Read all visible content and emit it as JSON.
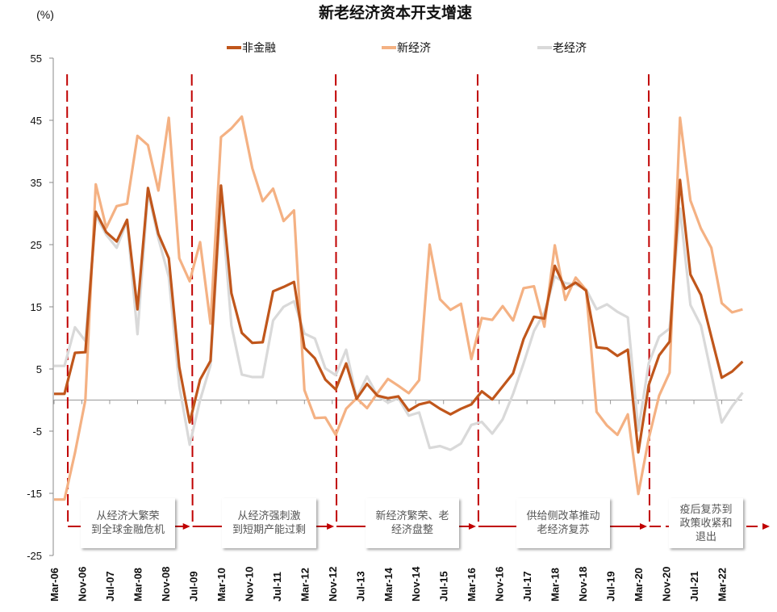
{
  "chart_data": {
    "type": "line",
    "title": "新老经济资本开支增速",
    "ylabel": "(%)",
    "xlabel": "",
    "ylim": [
      -25,
      55
    ],
    "yticks": [
      55,
      45,
      35,
      25,
      15,
      5,
      -5,
      -15,
      -25
    ],
    "x_start": "Mar-06",
    "x_frequency": "quarterly",
    "x_tick_labels": [
      "Mar-06",
      "Nov-06",
      "Jul-07",
      "Mar-08",
      "Nov-08",
      "Jul-09",
      "Mar-10",
      "Nov-10",
      "Jul-11",
      "Mar-12",
      "Nov-12",
      "Jul-13",
      "Mar-14",
      "Nov-14",
      "Jul-15",
      "Mar-16",
      "Nov-16",
      "Jul-17",
      "Mar-18",
      "Nov-18",
      "Jul-19",
      "Mar-20",
      "Nov-20",
      "Jul-21",
      "Mar-22"
    ],
    "legend_position": "top",
    "series": [
      {
        "name": "非金融",
        "color": "#C0561B",
        "values": [
          1.0,
          1.0,
          7.6,
          7.7,
          30.3,
          27,
          25.5,
          29,
          14.6,
          34.1,
          26.7,
          22.8,
          5.3,
          -3.6,
          3.3,
          6.3,
          34.5,
          17.2,
          10.8,
          9.2,
          9.3,
          17.5,
          18.2,
          19,
          8.4,
          6.7,
          3.3,
          1.7,
          5.9,
          0.2,
          2.6,
          0.7,
          0.3,
          0.6,
          -1.7,
          -0.7,
          -0.3,
          -1.4,
          -2.3,
          -1.4,
          -0.7,
          1.4,
          0.1,
          2.2,
          4.3,
          9.8,
          13.4,
          13.1,
          21.6,
          17.9,
          18.9,
          17.6,
          8.5,
          8.3,
          7.1,
          8.1,
          -8.4,
          2.4,
          7.2,
          9.4,
          35.4,
          20.2,
          16.9,
          10.2,
          3.6,
          4.6,
          6.2
        ]
      },
      {
        "name": "新经济",
        "color": "#F4B183",
        "values": [
          -16,
          -16,
          -8.5,
          0,
          34.7,
          27.7,
          31.2,
          31.6,
          42.5,
          41,
          33.7,
          45.4,
          22.8,
          19.1,
          25.4,
          12.3,
          42.3,
          43.7,
          45.6,
          37.3,
          32,
          34,
          28.8,
          30.5,
          1.6,
          -2.9,
          -2.8,
          -5.6,
          -1.4,
          0.3,
          -1.3,
          1.1,
          3.4,
          2.3,
          1.1,
          3.2,
          25,
          16.2,
          14.5,
          15.5,
          6.6,
          13.2,
          12.9,
          15.1,
          12.8,
          18,
          18.3,
          11.8,
          24.9,
          16.1,
          19.7,
          17.7,
          -1.9,
          -4.1,
          -5.6,
          -2.3,
          -15.1,
          -6.2,
          0.7,
          4.4,
          45.4,
          32.1,
          27.6,
          24.5,
          15.6,
          14.1,
          14.6
        ]
      },
      {
        "name": "老经济",
        "color": "#D9D9D9",
        "values": [
          5.5,
          5.5,
          11.7,
          9.5,
          29.7,
          26.6,
          24.5,
          28.8,
          10.6,
          33.5,
          26,
          19.8,
          2.3,
          -7.2,
          0,
          5.6,
          32.8,
          12,
          4.1,
          3.7,
          3.7,
          12.8,
          15,
          15.9,
          10.7,
          9.9,
          5.1,
          4,
          8.1,
          0.3,
          3.8,
          0.7,
          -0.4,
          0.3,
          -2.5,
          -2,
          -7.7,
          -7.4,
          -8,
          -7,
          -4,
          -3.5,
          -5.4,
          -3.1,
          1,
          5.9,
          11.1,
          14.1,
          19.9,
          18.8,
          18.6,
          17.8,
          14.6,
          15.4,
          14.2,
          13.3,
          -4.9,
          5.9,
          10.2,
          11.5,
          30.8,
          15.3,
          12,
          4.2,
          -3.6,
          -1,
          1.2
        ]
      }
    ],
    "phase_divider_color": "#C00000",
    "phase_divider_quarters_after_start": [
      1.25,
      13.2,
      27,
      40.6,
      57
    ],
    "annotations": [
      {
        "lines": [
          "从经济大繁荣",
          "到全球金融危机"
        ]
      },
      {
        "lines": [
          "从经济强刺激",
          "到短期产能过剩"
        ]
      },
      {
        "lines": [
          "新经济繁荣、老",
          "经济盘整"
        ]
      },
      {
        "lines": [
          "供给侧改革推动",
          "老经济复苏"
        ]
      },
      {
        "lines": [
          "疫后复苏到",
          "政策收紧和",
          "退出"
        ]
      }
    ]
  }
}
